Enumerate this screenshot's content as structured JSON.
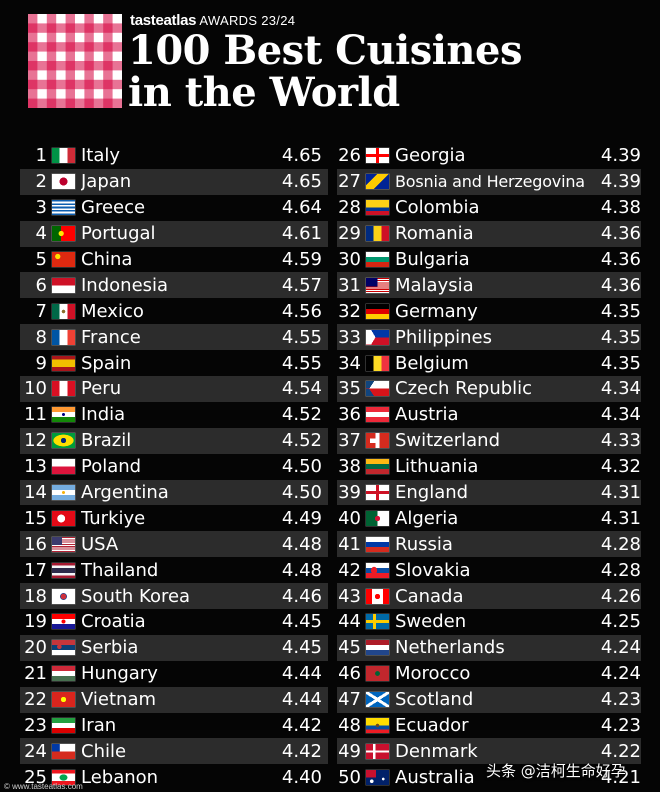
{
  "header": {
    "brand": "tasteatlas",
    "awards": "AWARDS 23/24",
    "title_line1": "100 Best Cuisines",
    "title_line2": "in the World"
  },
  "left_column": [
    {
      "rank": "1",
      "country": "Italy",
      "score": "4.65",
      "flag": "it"
    },
    {
      "rank": "2",
      "country": "Japan",
      "score": "4.65",
      "flag": "jp"
    },
    {
      "rank": "3",
      "country": "Greece",
      "score": "4.64",
      "flag": "gr"
    },
    {
      "rank": "4",
      "country": "Portugal",
      "score": "4.61",
      "flag": "pt"
    },
    {
      "rank": "5",
      "country": "China",
      "score": "4.59",
      "flag": "cn"
    },
    {
      "rank": "6",
      "country": "Indonesia",
      "score": "4.57",
      "flag": "id"
    },
    {
      "rank": "7",
      "country": "Mexico",
      "score": "4.56",
      "flag": "mx"
    },
    {
      "rank": "8",
      "country": "France",
      "score": "4.55",
      "flag": "fr"
    },
    {
      "rank": "9",
      "country": "Spain",
      "score": "4.55",
      "flag": "es"
    },
    {
      "rank": "10",
      "country": "Peru",
      "score": "4.54",
      "flag": "pe"
    },
    {
      "rank": "11",
      "country": "India",
      "score": "4.52",
      "flag": "in"
    },
    {
      "rank": "12",
      "country": "Brazil",
      "score": "4.52",
      "flag": "br"
    },
    {
      "rank": "13",
      "country": "Poland",
      "score": "4.50",
      "flag": "pl"
    },
    {
      "rank": "14",
      "country": "Argentina",
      "score": "4.50",
      "flag": "ar"
    },
    {
      "rank": "15",
      "country": "Turkiye",
      "score": "4.49",
      "flag": "tr"
    },
    {
      "rank": "16",
      "country": "USA",
      "score": "4.48",
      "flag": "us"
    },
    {
      "rank": "17",
      "country": "Thailand",
      "score": "4.48",
      "flag": "th"
    },
    {
      "rank": "18",
      "country": "South Korea",
      "score": "4.46",
      "flag": "kr"
    },
    {
      "rank": "19",
      "country": "Croatia",
      "score": "4.45",
      "flag": "hr"
    },
    {
      "rank": "20",
      "country": "Serbia",
      "score": "4.45",
      "flag": "rs"
    },
    {
      "rank": "21",
      "country": "Hungary",
      "score": "4.44",
      "flag": "hu"
    },
    {
      "rank": "22",
      "country": "Vietnam",
      "score": "4.44",
      "flag": "vn"
    },
    {
      "rank": "23",
      "country": "Iran",
      "score": "4.42",
      "flag": "ir"
    },
    {
      "rank": "24",
      "country": "Chile",
      "score": "4.42",
      "flag": "cl"
    },
    {
      "rank": "25",
      "country": "Lebanon",
      "score": "4.40",
      "flag": "lb"
    }
  ],
  "right_column": [
    {
      "rank": "26",
      "country": "Georgia",
      "score": "4.39",
      "flag": "ge"
    },
    {
      "rank": "27",
      "country": "Bosnia and Herzegovina",
      "score": "4.39",
      "flag": "ba"
    },
    {
      "rank": "28",
      "country": "Colombia",
      "score": "4.38",
      "flag": "co"
    },
    {
      "rank": "29",
      "country": "Romania",
      "score": "4.36",
      "flag": "ro"
    },
    {
      "rank": "30",
      "country": "Bulgaria",
      "score": "4.36",
      "flag": "bg"
    },
    {
      "rank": "31",
      "country": "Malaysia",
      "score": "4.36",
      "flag": "my"
    },
    {
      "rank": "32",
      "country": "Germany",
      "score": "4.35",
      "flag": "de"
    },
    {
      "rank": "33",
      "country": "Philippines",
      "score": "4.35",
      "flag": "ph"
    },
    {
      "rank": "34",
      "country": "Belgium",
      "score": "4.35",
      "flag": "be"
    },
    {
      "rank": "35",
      "country": "Czech Republic",
      "score": "4.34",
      "flag": "cz"
    },
    {
      "rank": "36",
      "country": "Austria",
      "score": "4.34",
      "flag": "at"
    },
    {
      "rank": "37",
      "country": "Switzerland",
      "score": "4.33",
      "flag": "ch"
    },
    {
      "rank": "38",
      "country": "Lithuania",
      "score": "4.32",
      "flag": "lt"
    },
    {
      "rank": "39",
      "country": "England",
      "score": "4.31",
      "flag": "en"
    },
    {
      "rank": "40",
      "country": "Algeria",
      "score": "4.31",
      "flag": "dz"
    },
    {
      "rank": "41",
      "country": "Russia",
      "score": "4.28",
      "flag": "ru"
    },
    {
      "rank": "42",
      "country": "Slovakia",
      "score": "4.28",
      "flag": "sk"
    },
    {
      "rank": "43",
      "country": "Canada",
      "score": "4.26",
      "flag": "ca"
    },
    {
      "rank": "44",
      "country": "Sweden",
      "score": "4.25",
      "flag": "se"
    },
    {
      "rank": "45",
      "country": "Netherlands",
      "score": "4.24",
      "flag": "nl"
    },
    {
      "rank": "46",
      "country": "Morocco",
      "score": "4.24",
      "flag": "ma"
    },
    {
      "rank": "47",
      "country": "Scotland",
      "score": "4.23",
      "flag": "sc"
    },
    {
      "rank": "48",
      "country": "Ecuador",
      "score": "4.23",
      "flag": "ec"
    },
    {
      "rank": "49",
      "country": "Denmark",
      "score": "4.22",
      "flag": "dk"
    },
    {
      "rank": "50",
      "country": "Australia",
      "score": "4.21",
      "flag": "au"
    }
  ],
  "footer": {
    "source": "© www.tasteatlas.com",
    "watermark": "头条 @洁柯生命好孕"
  },
  "colors": {
    "background": "#050505",
    "row_stripe": "#2c2c2c",
    "logo_red": "#d6003e"
  }
}
